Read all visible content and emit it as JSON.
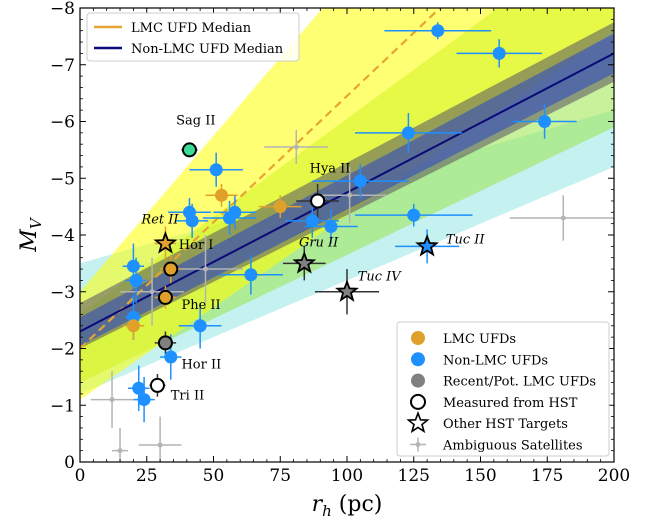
{
  "chart_data": {
    "type": "scatter",
    "title": "",
    "xlabel": "r_h (pc)",
    "ylabel": "M_V",
    "xlim": [
      0,
      200
    ],
    "ylim": [
      0,
      -8
    ],
    "y_inverted": true,
    "x_ticks": [
      "0",
      "25",
      "50",
      "75",
      "100",
      "125",
      "150",
      "175",
      "200"
    ],
    "y_ticks": [
      "0",
      "−1",
      "−2",
      "−3",
      "−4",
      "−5",
      "−6",
      "−7",
      "−8"
    ],
    "colors": {
      "lmc": "#e0a12a",
      "nonlmc": "#1e90ff",
      "lmc_band": "#ffff00",
      "lmc_fit": "#e6a532",
      "non_fit": "#0a0a78",
      "green_band": "#9be64b",
      "blue_band": "#2846c8",
      "cyan_band": "#96e6e6",
      "gray_band": "#606060",
      "sag": "#3cdc96",
      "ambiguous": "#b4b4b4"
    },
    "fit_lines": [
      {
        "name": "LMC UFD Median",
        "style": "dashed",
        "x": [
          0,
          200
        ],
        "y": [
          -2.0,
          -10.9
        ]
      },
      {
        "name": "Non-LMC UFD Median",
        "style": "solid",
        "x": [
          0,
          200
        ],
        "y": [
          -2.3,
          -7.2
        ]
      }
    ],
    "top_legend": [
      {
        "name": "LMC UFD Median"
      },
      {
        "name": "Non-LMC UFD Median"
      }
    ],
    "bottom_legend": [
      {
        "name": "LMC UFDs",
        "marker": "circle-lmc"
      },
      {
        "name": "Non-LMC UFDs",
        "marker": "circle-nonlmc"
      },
      {
        "name": "Recent/Pot. LMC UFDs",
        "marker": "circle-gray"
      },
      {
        "name": "Measured from HST",
        "marker": "circle-open"
      },
      {
        "name": "Other HST Targets",
        "marker": "star-open"
      },
      {
        "name": "Ambiguous Satellites",
        "marker": "cross-gray"
      }
    ],
    "series": [
      {
        "name": "LMC UFDs",
        "points": [
          {
            "x": 20,
            "y": -2.4,
            "xerr": 4,
            "yerr": 0.25
          },
          {
            "x": 32,
            "y": -2.9,
            "xerr": 4,
            "yerr": 0.2
          },
          {
            "x": 34,
            "y": -3.4,
            "xerr": 4,
            "yerr": 0.25
          },
          {
            "x": 53,
            "y": -4.7,
            "xerr": 6,
            "yerr": 0.2
          },
          {
            "x": 75,
            "y": -4.5,
            "xerr": 8,
            "yerr": 0.2
          }
        ]
      },
      {
        "name": "Non-LMC UFDs",
        "points": [
          {
            "x": 134,
            "y": -7.6,
            "xerr": 20,
            "yerr": 0.15
          },
          {
            "x": 157,
            "y": -7.2,
            "xerr": 16,
            "yerr": 0.25
          },
          {
            "x": 174,
            "y": -6.0,
            "xerr": 12,
            "yerr": 0.3
          },
          {
            "x": 123,
            "y": -5.8,
            "xerr": 20,
            "yerr": 0.35
          },
          {
            "x": 51,
            "y": -5.15,
            "xerr": 10,
            "yerr": 0.3
          },
          {
            "x": 105,
            "y": -4.95,
            "xerr": 18,
            "yerr": 0.3
          },
          {
            "x": 41,
            "y": -4.4,
            "xerr": 8,
            "yerr": 0.25
          },
          {
            "x": 42,
            "y": -4.25,
            "xerr": 6,
            "yerr": 0.3
          },
          {
            "x": 56,
            "y": -4.3,
            "xerr": 10,
            "yerr": 0.3
          },
          {
            "x": 58,
            "y": -4.4,
            "xerr": 8,
            "yerr": 0.3
          },
          {
            "x": 87,
            "y": -4.25,
            "xerr": 10,
            "yerr": 0.3
          },
          {
            "x": 94,
            "y": -4.15,
            "xerr": 10,
            "yerr": 0.3
          },
          {
            "x": 125,
            "y": -4.35,
            "xerr": 22,
            "yerr": 0.2
          },
          {
            "x": 20,
            "y": -3.45,
            "xerr": 4,
            "yerr": 0.4
          },
          {
            "x": 21,
            "y": -3.2,
            "xerr": 4,
            "yerr": 0.4
          },
          {
            "x": 64,
            "y": -3.3,
            "xerr": 12,
            "yerr": 0.35
          },
          {
            "x": 20,
            "y": -2.55,
            "xerr": 3,
            "yerr": 0.4
          },
          {
            "x": 45,
            "y": -2.4,
            "xerr": 8,
            "yerr": 0.4
          },
          {
            "x": 34,
            "y": -1.85,
            "xerr": 4,
            "yerr": 0.4
          },
          {
            "x": 22,
            "y": -1.3,
            "xerr": 4,
            "yerr": 0.4
          },
          {
            "x": 24,
            "y": -1.1,
            "xerr": 4,
            "yerr": 0.4
          }
        ]
      },
      {
        "name": "Recent/Pot. LMC UFDs",
        "points": [
          {
            "x": 32,
            "y": -2.1,
            "xerr": 4,
            "yerr": 0.2
          },
          {
            "x": 89,
            "y": -4.6,
            "xerr": 8,
            "yerr": 0.3
          }
        ]
      },
      {
        "name": "Sag II",
        "points": [
          {
            "x": 41,
            "y": -5.5,
            "xerr": 3,
            "yerr": 0.1
          }
        ]
      },
      {
        "name": "Measured from HST",
        "points": [
          {
            "x": 29,
            "y": -1.35,
            "xerr": 3,
            "yerr": 0.2
          },
          {
            "x": 89,
            "y": -4.6,
            "xerr": 8,
            "yerr": 0.3
          },
          {
            "x": 41,
            "y": -5.5,
            "xerr": 3,
            "yerr": 0.1
          }
        ]
      },
      {
        "name": "Other HST Targets",
        "points": [
          {
            "x": 32,
            "y": -3.85,
            "fill": "#e0a12a",
            "xerr": 4,
            "yerr": 0.3
          },
          {
            "x": 84,
            "y": -3.5,
            "fill": "#808080",
            "xerr": 8,
            "yerr": 0.3
          },
          {
            "x": 100,
            "y": -3.0,
            "fill": "#808080",
            "xerr": 12,
            "yerr": 0.4
          },
          {
            "x": 130,
            "y": -3.8,
            "fill": "#1e90ff",
            "xerr": 12,
            "yerr": 0.3
          }
        ]
      },
      {
        "name": "Ambiguous Satellites",
        "points": [
          {
            "x": 12,
            "y": -1.1,
            "xerr": 8,
            "yerr": 0.5
          },
          {
            "x": 30,
            "y": -0.3,
            "xerr": 8,
            "yerr": 0.5
          },
          {
            "x": 15,
            "y": -0.2,
            "xerr": 3,
            "yerr": 0.4
          },
          {
            "x": 81,
            "y": -5.55,
            "xerr": 12,
            "yerr": 0.3
          },
          {
            "x": 101,
            "y": -4.7,
            "xerr": 14,
            "yerr": 0.5
          },
          {
            "x": 181,
            "y": -4.3,
            "xerr": 20,
            "yerr": 0.4
          },
          {
            "x": 47,
            "y": -3.4,
            "xerr": 14,
            "yerr": 0.6
          },
          {
            "x": 27,
            "y": -3.0,
            "xerr": 12,
            "yerr": 0.6
          }
        ]
      }
    ],
    "annotations": [
      {
        "text": "Sag II",
        "x": 36,
        "y": -5.95,
        "italic": false
      },
      {
        "text": "Hya II",
        "x": 86,
        "y": -5.1,
        "italic": false
      },
      {
        "text": "Ret II",
        "x": 23,
        "y": -4.2,
        "italic": true
      },
      {
        "text": "Hor I",
        "x": 37,
        "y": -3.75,
        "italic": false
      },
      {
        "text": "Gru II",
        "x": 82,
        "y": -3.8,
        "italic": true
      },
      {
        "text": "Tuc II",
        "x": 137,
        "y": -3.85,
        "italic": true
      },
      {
        "text": "Tuc IV",
        "x": 104,
        "y": -3.2,
        "italic": true
      },
      {
        "text": "Phe II",
        "x": 38,
        "y": -2.7,
        "italic": false
      },
      {
        "text": "Hor II",
        "x": 38,
        "y": -1.65,
        "italic": false
      },
      {
        "text": "Tri II",
        "x": 34,
        "y": -1.1,
        "italic": false
      }
    ]
  }
}
